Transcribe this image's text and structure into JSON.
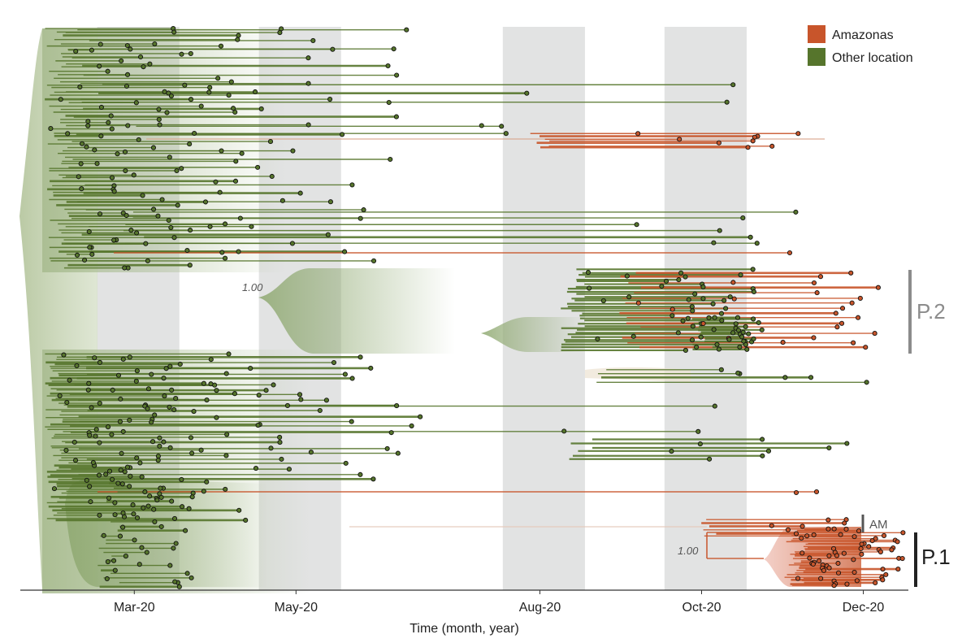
{
  "chart_data": {
    "type": "phylogenetic-time-tree",
    "xlabel": "Time (month, year)",
    "x_ticks": [
      "Mar-20",
      "May-20",
      "Aug-20",
      "Oct-20",
      "Dec-20"
    ],
    "x_tick_dates": [
      "2020-03-15",
      "2020-05-15",
      "2020-08-15",
      "2020-10-15",
      "2020-12-15"
    ],
    "xlim": [
      "2020-02-01",
      "2021-01-01"
    ],
    "shaded_bands": [
      [
        "2020-03-01",
        "2020-04-01"
      ],
      [
        "2020-05-01",
        "2020-06-01"
      ],
      [
        "2020-08-01",
        "2020-09-01"
      ],
      [
        "2020-10-01",
        "2020-11-01"
      ]
    ],
    "legend": {
      "placement": "top-right",
      "entries": [
        {
          "label": "Amazonas",
          "color": "#c8552b"
        },
        {
          "label": "Other location",
          "color": "#56752c"
        }
      ]
    },
    "clades": [
      {
        "label": "P.2",
        "color": "#8c8c8c"
      },
      {
        "label": "AM",
        "color": "#555555"
      },
      {
        "label": "P.1",
        "color": "#222222"
      }
    ],
    "node_supports": [
      {
        "label": "1.00",
        "clade": "P.2"
      },
      {
        "label": "1.00",
        "clade": "P.1"
      }
    ]
  }
}
